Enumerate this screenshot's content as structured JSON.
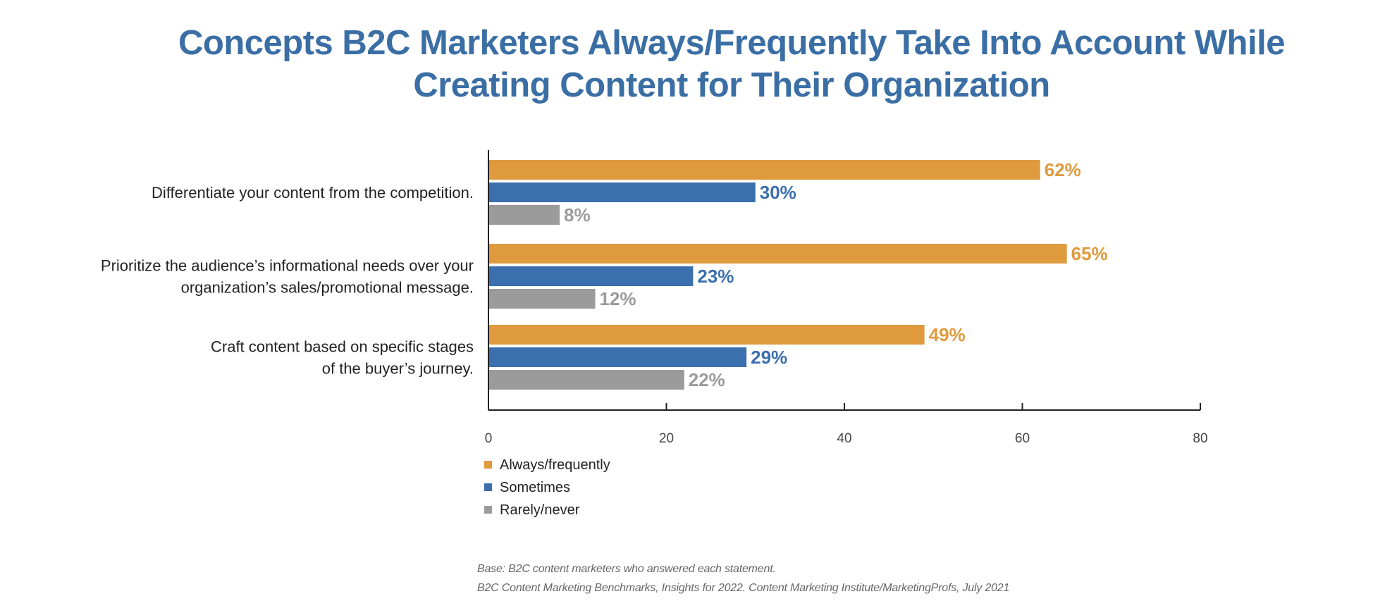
{
  "title_lines": [
    "Concepts B2C Marketers Always/Frequently Take Into Account While",
    "Creating Content for Their Organization"
  ],
  "colors": {
    "title": "#3a6ea5",
    "always": "#e09a3e",
    "sometimes": "#3b6fad",
    "rarely": "#9b9b9b",
    "axis": "#222222",
    "category_text": "#222222",
    "tick_text": "#444444"
  },
  "chart_data": {
    "type": "bar",
    "orientation": "horizontal",
    "title": "Concepts B2C Marketers Always/Frequently Take Into Account While Creating Content for Their Organization",
    "categories": [
      [
        "Differentiate your content from the competition."
      ],
      [
        "Prioritize the audience’s informational needs over your",
        "organization’s sales/promotional message."
      ],
      [
        "Craft content based on specific stages",
        "of the buyer’s journey."
      ]
    ],
    "series": [
      {
        "name": "Always/frequently",
        "values": [
          62,
          65,
          49
        ],
        "labels": [
          "62%",
          "65%",
          "49%"
        ]
      },
      {
        "name": "Sometimes",
        "values": [
          30,
          23,
          29
        ],
        "labels": [
          "30%",
          "23%",
          "29%"
        ]
      },
      {
        "name": "Rarely/never",
        "values": [
          8,
          12,
          22
        ],
        "labels": [
          "8%",
          "12%",
          "22%"
        ]
      }
    ],
    "xlim": [
      0,
      80
    ],
    "xticks": [
      "0",
      "20",
      "40",
      "60",
      "80"
    ],
    "xlabel": "",
    "ylabel": "",
    "legend_position": "bottom-left"
  },
  "footnotes": {
    "base": "Base: B2C content marketers who answered each statement.",
    "source": "B2C Content Marketing Benchmarks, Insights for 2022. Content Marketing Institute/MarketingProfs, July 2021"
  }
}
